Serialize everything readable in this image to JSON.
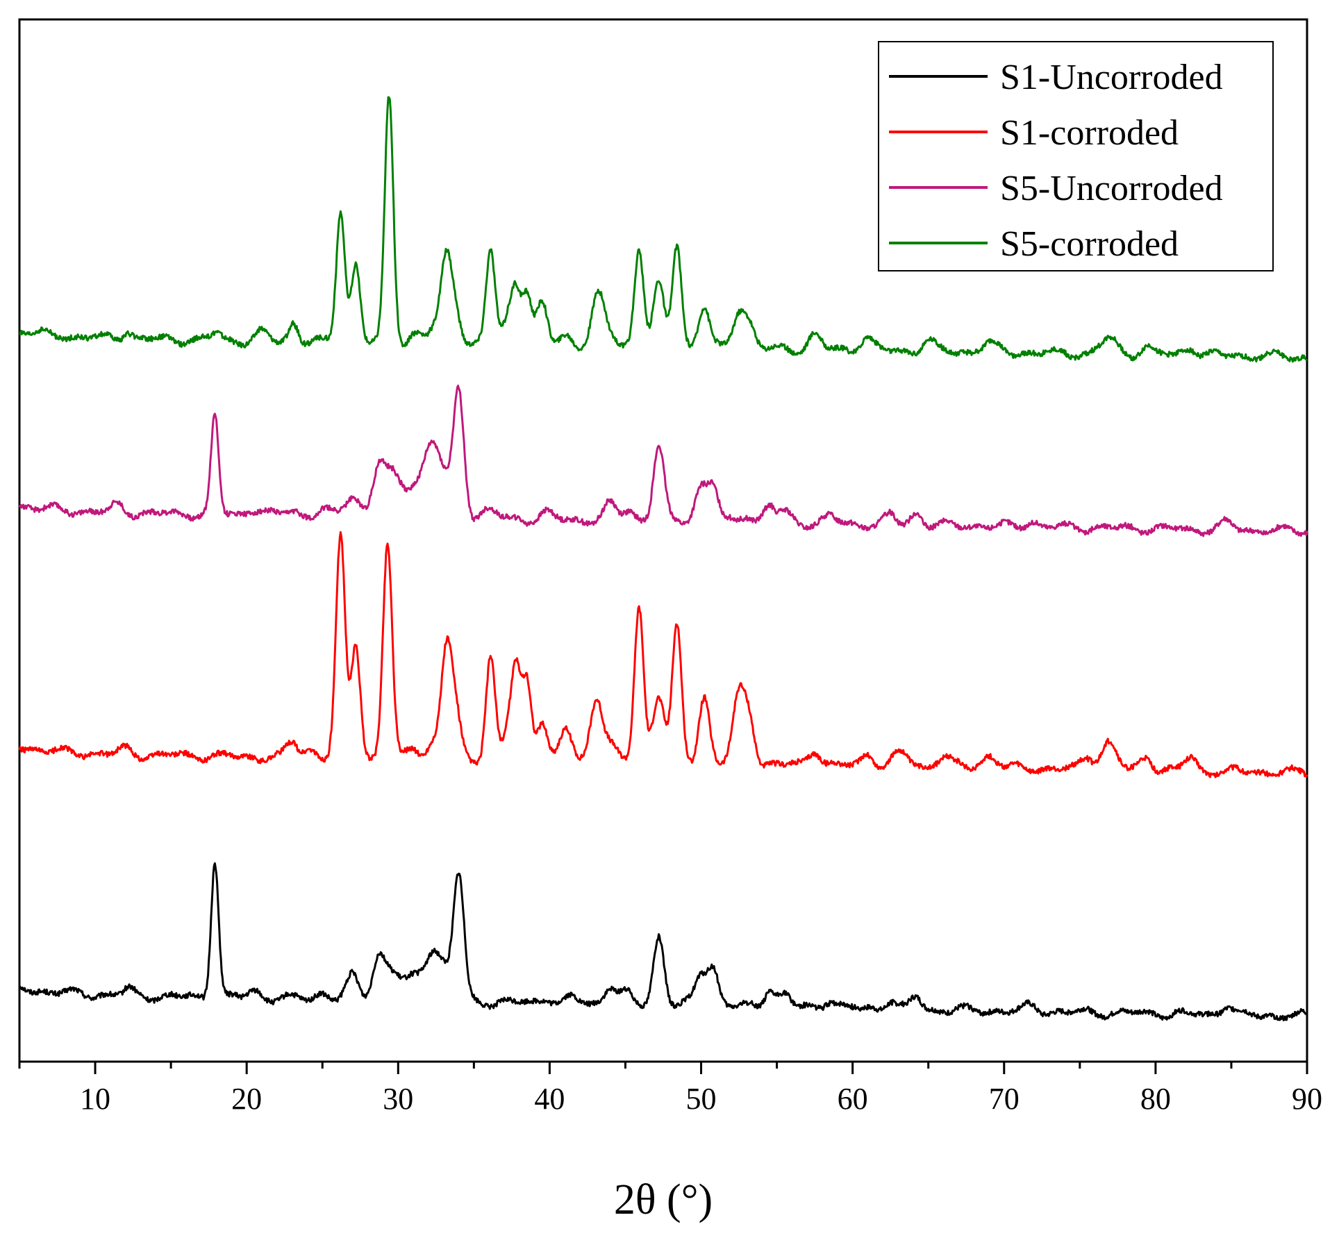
{
  "chart_data": {
    "type": "line",
    "title": "",
    "xlabel": "2θ (°)",
    "ylabel": "",
    "xlim": [
      5,
      90
    ],
    "ylim": [
      0,
      100
    ],
    "grid": false,
    "legend_position": "top-right",
    "x_ticks": [
      10,
      20,
      30,
      40,
      50,
      60,
      70,
      80,
      90
    ],
    "x_tick_labels": [
      "10",
      "20",
      "30",
      "40",
      "50",
      "60",
      "70",
      "80",
      "90"
    ],
    "series": [
      {
        "name": "S1-Uncorroded",
        "color": "#000000",
        "baseline": 6.5,
        "slope": 0.025,
        "peaks": [
          [
            12.2,
            0.6,
            0.3
          ],
          [
            17.9,
            13.2,
            0.25
          ],
          [
            20.5,
            0.7,
            0.4
          ],
          [
            25.0,
            0.6,
            0.4
          ],
          [
            27.0,
            2.2,
            0.4
          ],
          [
            28.7,
            4.0,
            0.4
          ],
          [
            29.6,
            2.6,
            0.5
          ],
          [
            31.0,
            2.0,
            0.6
          ],
          [
            32.2,
            4.0,
            0.5
          ],
          [
            33.0,
            2.5,
            0.5
          ],
          [
            34.0,
            12.0,
            0.35
          ],
          [
            39.8,
            0.5,
            0.4
          ],
          [
            41.5,
            0.5,
            0.4
          ],
          [
            44.0,
            1.7,
            0.4
          ],
          [
            45.0,
            1.0,
            0.4
          ],
          [
            47.2,
            6.6,
            0.35
          ],
          [
            50.0,
            3.0,
            0.4
          ],
          [
            50.8,
            3.5,
            0.35
          ],
          [
            54.5,
            1.7,
            0.35
          ],
          [
            55.5,
            1.2,
            0.4
          ],
          [
            58.5,
            0.8,
            0.4
          ],
          [
            62.5,
            0.9,
            0.35
          ],
          [
            64.2,
            1.2,
            0.35
          ],
          [
            71.8,
            0.5,
            0.4
          ],
          [
            84.7,
            0.9,
            0.4
          ]
        ]
      },
      {
        "name": "S1-corroded",
        "color": "#ff0000",
        "baseline": 29.6,
        "slope": 0.022,
        "peaks": [
          [
            12.0,
            0.5,
            0.4
          ],
          [
            23.0,
            1.5,
            0.35
          ],
          [
            24.2,
            0.8,
            0.4
          ],
          [
            26.2,
            21.0,
            0.3
          ],
          [
            27.2,
            11.0,
            0.3
          ],
          [
            29.3,
            20.7,
            0.3
          ],
          [
            31.0,
            1.2,
            0.4
          ],
          [
            32.3,
            1.5,
            0.4
          ],
          [
            33.2,
            10.5,
            0.35
          ],
          [
            33.8,
            4.0,
            0.35
          ],
          [
            36.1,
            10.0,
            0.3
          ],
          [
            37.3,
            3.0,
            0.35
          ],
          [
            37.8,
            8.0,
            0.3
          ],
          [
            38.5,
            7.5,
            0.3
          ],
          [
            39.5,
            4.0,
            0.35
          ],
          [
            41.1,
            3.0,
            0.4
          ],
          [
            43.1,
            6.2,
            0.4
          ],
          [
            44.0,
            1.5,
            0.4
          ],
          [
            45.9,
            15.0,
            0.3
          ],
          [
            47.2,
            6.5,
            0.4
          ],
          [
            48.4,
            13.0,
            0.3
          ],
          [
            50.2,
            6.5,
            0.35
          ],
          [
            52.5,
            6.5,
            0.4
          ],
          [
            53.2,
            4.0,
            0.35
          ],
          [
            57.5,
            1.5,
            0.4
          ],
          [
            61.0,
            1.2,
            0.4
          ],
          [
            63.2,
            1.3,
            0.5
          ],
          [
            66.0,
            1.0,
            0.5
          ],
          [
            69.0,
            1.2,
            0.5
          ],
          [
            75.5,
            1.2,
            0.4
          ],
          [
            76.9,
            2.6,
            0.5
          ],
          [
            79.4,
            1.3,
            0.4
          ],
          [
            82.3,
            1.3,
            0.4
          ]
        ]
      },
      {
        "name": "S5-Uncorroded",
        "color": "#c0187c",
        "baseline": 52.8,
        "slope": 0.022,
        "peaks": [
          [
            11.5,
            0.7,
            0.4
          ],
          [
            17.9,
            9.4,
            0.25
          ],
          [
            20.5,
            0.6,
            0.5
          ],
          [
            23.0,
            0.5,
            0.4
          ],
          [
            25.0,
            0.6,
            0.4
          ],
          [
            27.0,
            2.0,
            0.5
          ],
          [
            28.7,
            4.5,
            0.4
          ],
          [
            29.6,
            3.5,
            0.5
          ],
          [
            31.0,
            3.0,
            0.7
          ],
          [
            32.2,
            5.7,
            0.5
          ],
          [
            33.0,
            3.0,
            0.5
          ],
          [
            34.0,
            12.0,
            0.35
          ],
          [
            36.0,
            0.8,
            0.5
          ],
          [
            39.8,
            0.6,
            0.4
          ],
          [
            44.0,
            1.5,
            0.4
          ],
          [
            45.2,
            1.0,
            0.4
          ],
          [
            47.2,
            7.2,
            0.35
          ],
          [
            50.0,
            3.3,
            0.4
          ],
          [
            50.8,
            3.3,
            0.35
          ],
          [
            53.0,
            0.8,
            0.4
          ],
          [
            54.5,
            1.6,
            0.35
          ],
          [
            55.5,
            1.0,
            0.4
          ],
          [
            58.5,
            0.7,
            0.4
          ],
          [
            62.5,
            0.9,
            0.35
          ],
          [
            64.2,
            1.2,
            0.35
          ],
          [
            71.8,
            0.5,
            0.4
          ],
          [
            84.7,
            0.7,
            0.4
          ]
        ]
      },
      {
        "name": "S5-corroded",
        "color": "#008000",
        "baseline": 69.5,
        "slope": 0.022,
        "peaks": [
          [
            12.1,
            0.8,
            0.3
          ],
          [
            18.0,
            0.8,
            0.3
          ],
          [
            21.0,
            0.8,
            0.4
          ],
          [
            23.1,
            1.8,
            0.3
          ],
          [
            26.2,
            12.7,
            0.28
          ],
          [
            27.2,
            7.5,
            0.3
          ],
          [
            29.4,
            23.6,
            0.28
          ],
          [
            31.2,
            1.0,
            0.4
          ],
          [
            32.5,
            1.5,
            0.5
          ],
          [
            33.2,
            7.5,
            0.35
          ],
          [
            33.8,
            3.0,
            0.35
          ],
          [
            36.1,
            9.0,
            0.3
          ],
          [
            37.3,
            2.5,
            0.35
          ],
          [
            37.8,
            5.0,
            0.3
          ],
          [
            38.5,
            5.0,
            0.3
          ],
          [
            39.5,
            4.0,
            0.35
          ],
          [
            41.1,
            1.0,
            0.4
          ],
          [
            43.2,
            4.8,
            0.4
          ],
          [
            44.0,
            1.0,
            0.4
          ],
          [
            45.9,
            9.5,
            0.3
          ],
          [
            47.2,
            6.0,
            0.35
          ],
          [
            48.4,
            10.0,
            0.3
          ],
          [
            50.2,
            4.0,
            0.35
          ],
          [
            52.5,
            3.6,
            0.4
          ],
          [
            53.2,
            2.0,
            0.35
          ],
          [
            57.5,
            1.4,
            0.4
          ],
          [
            60.9,
            1.3,
            0.4
          ],
          [
            65.0,
            1.0,
            0.4
          ],
          [
            69.0,
            0.8,
            0.5
          ],
          [
            76.9,
            1.5,
            0.5
          ],
          [
            79.4,
            0.7,
            0.4
          ],
          [
            82.3,
            0.8,
            0.4
          ]
        ]
      }
    ]
  }
}
